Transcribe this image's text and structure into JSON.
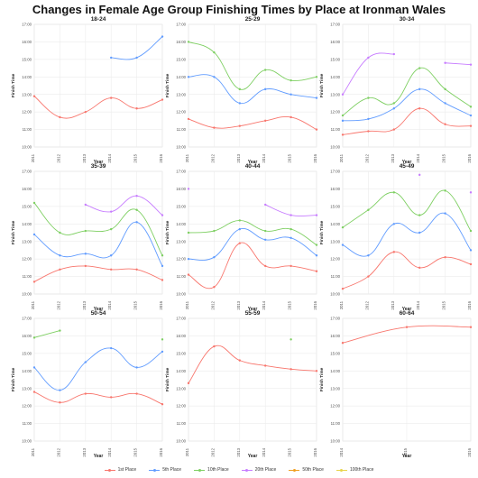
{
  "title": "Changes in Female Age Group Finishing Times by Place at Ironman Wales",
  "colors": {
    "1st Place": "#f8766d",
    "5th Place": "#619cff",
    "10th Place": "#7ecf62",
    "20th Place": "#c77cff",
    "50th Place": "#f0a020",
    "100th Place": "#e8d44a"
  },
  "legend": [
    "1st Place",
    "5th Place",
    "10th Place",
    "20th Place",
    "50th Place",
    "100th Place"
  ],
  "chart_data": [
    {
      "type": "line",
      "title": "18-24",
      "xlabel": "Year",
      "ylabel": "Finish Time",
      "x": [
        2011,
        2012,
        2013,
        2014,
        2015,
        2016
      ],
      "xticks": [
        "2011",
        "2012",
        "2013",
        "2014",
        "2015",
        "2016"
      ],
      "ylim": [
        10,
        17
      ],
      "yticks": [
        "10:00",
        "11:00",
        "12:00",
        "13:00",
        "14:00",
        "15:00",
        "16:00",
        "17:00"
      ],
      "series": [
        {
          "name": "1st Place",
          "values": [
            12.9,
            11.7,
            12.0,
            12.8,
            12.2,
            12.7
          ]
        },
        {
          "name": "5th Place",
          "values": [
            null,
            null,
            null,
            15.1,
            15.1,
            16.3
          ]
        }
      ]
    },
    {
      "type": "line",
      "title": "25-29",
      "xlabel": "Year",
      "ylabel": "Finish Time",
      "x": [
        2011,
        2012,
        2013,
        2014,
        2015,
        2016
      ],
      "xticks": [
        "2011",
        "2012",
        "2013",
        "2014",
        "2015",
        "2016"
      ],
      "ylim": [
        10,
        17
      ],
      "yticks": [
        "10:00",
        "11:00",
        "12:00",
        "13:00",
        "14:00",
        "15:00",
        "16:00",
        "17:00"
      ],
      "series": [
        {
          "name": "1st Place",
          "values": [
            11.6,
            11.1,
            11.2,
            11.5,
            11.7,
            11.0
          ]
        },
        {
          "name": "5th Place",
          "values": [
            14.0,
            14.0,
            12.5,
            13.3,
            13.0,
            12.8
          ]
        },
        {
          "name": "10th Place",
          "values": [
            16.0,
            15.4,
            13.3,
            14.4,
            13.8,
            14.0
          ]
        }
      ]
    },
    {
      "type": "line",
      "title": "30-34",
      "xlabel": "Year",
      "ylabel": "Finish Time",
      "x": [
        2011,
        2012,
        2013,
        2014,
        2015,
        2016
      ],
      "xticks": [
        "2011",
        "2012",
        "2013",
        "2014",
        "2015",
        "2016"
      ],
      "ylim": [
        10,
        17
      ],
      "yticks": [
        "10:00",
        "11:00",
        "12:00",
        "13:00",
        "14:00",
        "15:00",
        "16:00",
        "17:00"
      ],
      "series": [
        {
          "name": "1st Place",
          "values": [
            10.7,
            10.9,
            11.0,
            12.2,
            11.3,
            11.2
          ]
        },
        {
          "name": "5th Place",
          "values": [
            11.5,
            11.6,
            12.2,
            13.3,
            12.5,
            11.8
          ]
        },
        {
          "name": "10th Place",
          "values": [
            11.8,
            12.8,
            12.5,
            14.5,
            13.3,
            12.3
          ]
        },
        {
          "name": "20th Place",
          "values": [
            13.0,
            15.1,
            15.3,
            null,
            14.8,
            14.7
          ]
        }
      ]
    },
    {
      "type": "line",
      "title": "35-39",
      "xlabel": "Year",
      "ylabel": "Finish Time",
      "x": [
        2011,
        2012,
        2013,
        2014,
        2015,
        2016
      ],
      "xticks": [
        "2011",
        "2012",
        "2013",
        "2014",
        "2015",
        "2016"
      ],
      "ylim": [
        10,
        17
      ],
      "yticks": [
        "10:00",
        "11:00",
        "12:00",
        "13:00",
        "14:00",
        "15:00",
        "16:00",
        "17:00"
      ],
      "series": [
        {
          "name": "1st Place",
          "values": [
            10.7,
            11.4,
            11.6,
            11.4,
            11.4,
            10.8
          ]
        },
        {
          "name": "5th Place",
          "values": [
            13.4,
            12.2,
            12.3,
            12.2,
            14.1,
            11.6
          ]
        },
        {
          "name": "10th Place",
          "values": [
            15.2,
            13.5,
            13.6,
            13.7,
            14.8,
            12.2
          ]
        },
        {
          "name": "20th Place",
          "values": [
            null,
            null,
            15.1,
            14.7,
            15.6,
            14.5
          ]
        }
      ]
    },
    {
      "type": "line",
      "title": "40-44",
      "xlabel": "Year",
      "ylabel": "Finish Time",
      "x": [
        2011,
        2012,
        2013,
        2014,
        2015,
        2016
      ],
      "xticks": [
        "2011",
        "2012",
        "2013",
        "2014",
        "2015",
        "2016"
      ],
      "ylim": [
        10,
        17
      ],
      "yticks": [
        "10:00",
        "11:00",
        "12:00",
        "13:00",
        "14:00",
        "15:00",
        "16:00",
        "17:00"
      ],
      "series": [
        {
          "name": "1st Place",
          "values": [
            11.1,
            10.4,
            12.9,
            11.6,
            11.6,
            11.3
          ]
        },
        {
          "name": "5th Place",
          "values": [
            12.0,
            12.1,
            13.7,
            13.1,
            13.2,
            12.2
          ]
        },
        {
          "name": "10th Place",
          "values": [
            13.5,
            13.6,
            14.2,
            13.6,
            13.7,
            12.8
          ]
        },
        {
          "name": "20th Place",
          "values": [
            16.0,
            null,
            null,
            15.1,
            14.5,
            14.5
          ]
        }
      ]
    },
    {
      "type": "line",
      "title": "45-49",
      "xlabel": "Year",
      "ylabel": "Finish Time",
      "x": [
        2011,
        2012,
        2013,
        2014,
        2015,
        2016
      ],
      "xticks": [
        "2011",
        "2012",
        "2013",
        "2014",
        "2015",
        "2016"
      ],
      "ylim": [
        10,
        17
      ],
      "yticks": [
        "10:00",
        "11:00",
        "12:00",
        "13:00",
        "14:00",
        "15:00",
        "16:00",
        "17:00"
      ],
      "series": [
        {
          "name": "1st Place",
          "values": [
            10.3,
            11.0,
            12.4,
            11.5,
            12.1,
            11.7
          ]
        },
        {
          "name": "5th Place",
          "values": [
            12.8,
            12.2,
            14.0,
            13.5,
            14.6,
            12.5
          ]
        },
        {
          "name": "10th Place",
          "values": [
            13.8,
            14.8,
            15.8,
            14.5,
            15.9,
            13.6
          ]
        },
        {
          "name": "20th Place",
          "values": [
            null,
            null,
            null,
            16.8,
            null,
            15.8
          ]
        }
      ]
    },
    {
      "type": "line",
      "title": "50-54",
      "xlabel": "Year",
      "ylabel": "Finish Time",
      "x": [
        2011,
        2012,
        2013,
        2014,
        2015,
        2016
      ],
      "xticks": [
        "2011",
        "2012",
        "2013",
        "2014",
        "2015",
        "2016"
      ],
      "ylim": [
        10,
        17
      ],
      "yticks": [
        "10:00",
        "11:00",
        "12:00",
        "13:00",
        "14:00",
        "15:00",
        "16:00",
        "17:00"
      ],
      "series": [
        {
          "name": "1st Place",
          "values": [
            12.8,
            12.2,
            12.7,
            12.5,
            12.7,
            12.1
          ]
        },
        {
          "name": "5th Place",
          "values": [
            14.2,
            12.9,
            14.5,
            15.3,
            14.2,
            15.1
          ]
        },
        {
          "name": "10th Place",
          "values": [
            15.9,
            16.3,
            null,
            null,
            null,
            15.8
          ]
        }
      ]
    },
    {
      "type": "line",
      "title": "55-59",
      "xlabel": "Year",
      "ylabel": "Finish Time",
      "x": [
        2011,
        2012,
        2013,
        2014,
        2015,
        2016
      ],
      "xticks": [
        "2011",
        "2012",
        "2013",
        "2014",
        "2015",
        "2016"
      ],
      "ylim": [
        10,
        17
      ],
      "yticks": [
        "10:00",
        "11:00",
        "12:00",
        "13:00",
        "14:00",
        "15:00",
        "16:00",
        "17:00"
      ],
      "series": [
        {
          "name": "1st Place",
          "values": [
            13.3,
            15.4,
            14.6,
            14.3,
            14.1,
            14.0
          ]
        },
        {
          "name": "10th Place",
          "values": [
            null,
            null,
            null,
            null,
            15.8,
            null
          ]
        }
      ]
    },
    {
      "type": "line",
      "title": "60-64",
      "xlabel": "Year",
      "ylabel": "Finish Time",
      "x": [
        2014,
        2015,
        2016
      ],
      "xticks": [
        "2014",
        "2015",
        "2016"
      ],
      "ylim": [
        10,
        17
      ],
      "yticks": [
        "10:00",
        "11:00",
        "12:00",
        "13:00",
        "14:00",
        "15:00",
        "16:00",
        "17:00"
      ],
      "series": [
        {
          "name": "1st Place",
          "values": [
            15.6,
            16.5,
            16.5
          ]
        }
      ]
    }
  ]
}
